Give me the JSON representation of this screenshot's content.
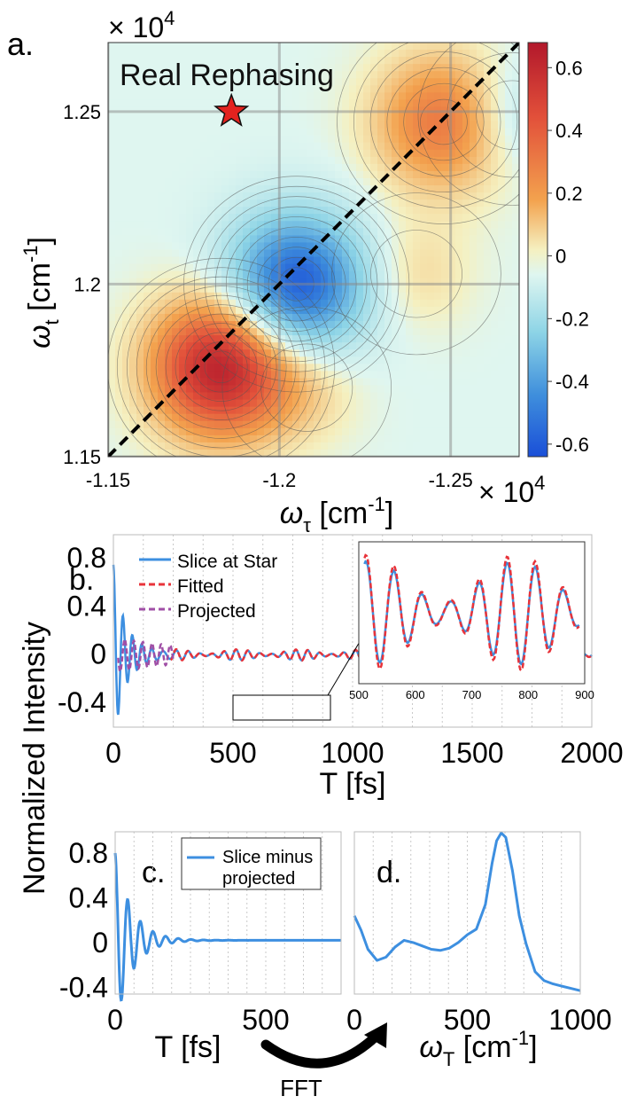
{
  "chart_data": [
    {
      "id": "a",
      "type": "heatmap",
      "panel_label": "a.",
      "title": "Real Rephasing",
      "xlabel": "ω",
      "xlabel_sub": "τ",
      "xlabel_unit": "[cm",
      "xlabel_exp": "-1",
      "ylabel": "ω",
      "ylabel_sub": "t",
      "ylabel_unit": "[cm",
      "ylabel_exp": "-1",
      "x_multiplier": "× 10",
      "x_multiplier_exp": "4",
      "y_multiplier": "× 10",
      "y_multiplier_exp": "4",
      "xlim": [
        -1.15,
        -1.27
      ],
      "ylim": [
        1.15,
        1.27
      ],
      "xticks": [
        -1.15,
        -1.2,
        -1.25
      ],
      "xtick_labels": [
        "-1.15",
        "-1.2",
        "-1.25"
      ],
      "yticks": [
        1.15,
        1.2,
        1.25
      ],
      "ytick_labels": [
        "1.15",
        "1.2",
        "1.25"
      ],
      "star": {
        "x": -1.186,
        "y": 1.25,
        "label": "star"
      },
      "peaks": [
        {
          "x": -1.183,
          "y": 1.176,
          "value": 0.65
        },
        {
          "x": -1.205,
          "y": 1.2,
          "value": -0.62
        },
        {
          "x": -1.248,
          "y": 1.247,
          "value": 0.35
        },
        {
          "x": -1.268,
          "y": 1.249,
          "value": -0.15
        },
        {
          "x": -1.24,
          "y": 1.203,
          "value": 0.1
        },
        {
          "x": -1.208,
          "y": 1.17,
          "value": 0.1
        }
      ],
      "colorbar": {
        "min": -0.64,
        "max": 0.68,
        "ticks": [
          0.6,
          0.4,
          0.2,
          0,
          -0.2,
          -0.4,
          -0.6
        ],
        "tick_labels": [
          "0.6",
          "0.4",
          "0.2",
          "0",
          "-0.2",
          "-0.4",
          "-0.6"
        ]
      },
      "diagonal": "dashed black line y = -x"
    },
    {
      "id": "b",
      "type": "line",
      "panel_label": "b.",
      "xlabel": "T [fs]",
      "ylabel": "Normalized Intensity",
      "xlim": [
        0,
        2000
      ],
      "ylim": [
        -0.6,
        1.0
      ],
      "xticks": [
        0,
        500,
        1000,
        1500,
        2000
      ],
      "xtick_labels": [
        "0",
        "500",
        "1000",
        "1500",
        "2000"
      ],
      "yticks": [
        0.8,
        0.4,
        0,
        -0.4
      ],
      "ytick_labels": [
        "0.8",
        "0.4",
        "0",
        "-0.4"
      ],
      "legend": [
        "Slice at Star",
        "Fitted",
        "Projected"
      ],
      "series": [
        {
          "name": "Slice at Star",
          "color": "#3d8fe0",
          "style": "solid",
          "description": "damped oscillation starting 0.75 decaying by ~300 fs, then small beat oscillations ±0.05"
        },
        {
          "name": "Fitted",
          "color": "#e8333a",
          "style": "dashed",
          "description": "follows slice beyond ~250 fs, amplitude ±0.05"
        },
        {
          "name": "Projected",
          "color": "#a04fa6",
          "style": "dashed",
          "description": "oscillation ±0.15 from 20 to 250 fs"
        }
      ],
      "inset": {
        "xlim": [
          500,
          900
        ],
        "xticks": [
          500,
          600,
          700,
          800,
          900
        ],
        "xtick_labels": [
          "500",
          "600",
          "700",
          "800",
          "900"
        ],
        "zoom_box_x": [
          500,
          900
        ]
      }
    },
    {
      "id": "c",
      "type": "line",
      "panel_label": "c.",
      "xlabel": "T [fs]",
      "ylabel": "Normalized Intensity",
      "xlim": [
        0,
        750
      ],
      "ylim": [
        -0.45,
        1.0
      ],
      "xticks": [
        0,
        500
      ],
      "xtick_labels": [
        "0",
        "500"
      ],
      "yticks": [
        0.8,
        0.4,
        0,
        -0.4
      ],
      "ytick_labels": [
        "0.8",
        "0.4",
        "0",
        "-0.4"
      ],
      "legend": [
        "Slice minus projected"
      ],
      "legend_lines": [
        "Slice minus",
        "projected"
      ],
      "series": [
        {
          "name": "Slice minus projected",
          "color": "#3d8fe0",
          "description": "damped oscillation from 0.78 decaying to ~0.03 by 230 fs, flat afterwards"
        }
      ]
    },
    {
      "id": "d",
      "type": "line",
      "panel_label": "d.",
      "xlabel": "ω",
      "xlabel_sub": "T",
      "xlabel_unit": "[cm",
      "xlabel_exp": "-1",
      "xlim": [
        0,
        1000
      ],
      "ylim": [
        -0.45,
        1.0
      ],
      "xticks": [
        0,
        500,
        1000
      ],
      "xtick_labels": [
        "0",
        "500",
        "1000"
      ],
      "series": [
        {
          "name": "FFT",
          "color": "#3d8fe0",
          "x": [
            0,
            30,
            60,
            100,
            140,
            180,
            220,
            260,
            300,
            340,
            380,
            420,
            460,
            500,
            540,
            580,
            610,
            630,
            650,
            670,
            700,
            730,
            760,
            800,
            840,
            880,
            920,
            960,
            1000
          ],
          "y": [
            0.25,
            0.12,
            -0.05,
            -0.15,
            -0.12,
            -0.03,
            0.03,
            0.01,
            -0.02,
            -0.05,
            -0.06,
            -0.04,
            0.01,
            0.08,
            0.13,
            0.35,
            0.72,
            0.92,
            0.99,
            0.95,
            0.65,
            0.25,
            0.0,
            -0.25,
            -0.33,
            -0.36,
            -0.38,
            -0.4,
            -0.42
          ]
        }
      ]
    }
  ],
  "fft_label": "FFT"
}
